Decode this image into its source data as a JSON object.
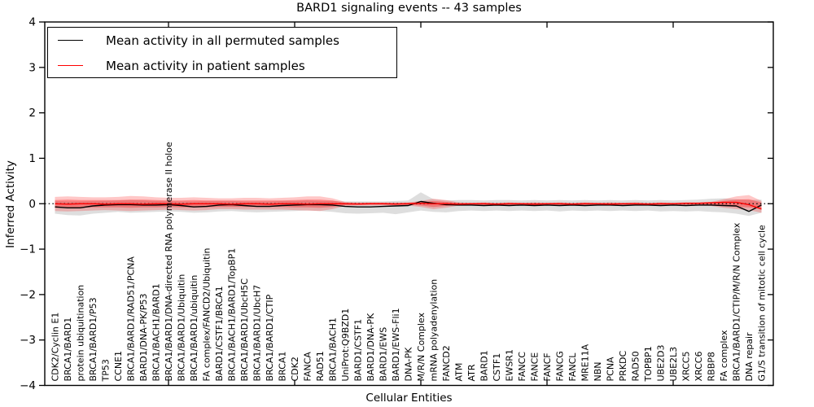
{
  "chart_data": {
    "type": "line",
    "title": "BARD1 signaling events -- 43 samples",
    "xlabel": "Cellular Entities",
    "ylabel": "Inferred Activity",
    "ylim": [
      -4,
      4
    ],
    "yticks": [
      4,
      3,
      2,
      1,
      0,
      -1,
      -2,
      -3,
      -4
    ],
    "x_major_tick_indices": [
      9,
      19,
      29,
      39,
      49
    ],
    "grid": false,
    "legend_position": "upper left",
    "zero_reference_line": {
      "style": "dotted",
      "color": "#000000",
      "y": 0
    },
    "categories": [
      "CDK2/Cyclin E1",
      "BRCA1/BARD1",
      "protein ubiquitination",
      "BRCA1/BARD1/P53",
      "TP53",
      "CCNE1",
      "BRCA1/BARD1/RAD51/PCNA",
      "BARD1/DNA-PK/P53",
      "BRCA1/BACH1/BARD1",
      "BRCA1/BARD1/DNA-directed RNA polymerase II holoe",
      "BRCA1/BARD1/Ubiquitin",
      "BRCA1/BARD1/ubiquitin",
      "FA complex/FANCD2/Ubiquitin",
      "BARD1/CSTF1/BRCA1",
      "BRCA1/BACH1/BARD1/TopBP1",
      "BRCA1/BARD1/UbcH5C",
      "BRCA1/BARD1/UbcH7",
      "BRCA1/BARD1/CTIP",
      "BRCA1",
      "CDK2",
      "FANCA",
      "RAD51",
      "BRCA1/BACH1",
      "UniProt:Q9BZD1",
      "BARD1/CSTF1",
      "BARD1/DNA-PK",
      "BARD1/EWS",
      "BARD1/EWS-Fli1",
      "DNA-PK",
      "M/R/N Complex",
      "mRNA polyadenylation",
      "FANCD2",
      "ATM",
      "ATR",
      "BARD1",
      "CSTF1",
      "EWSR1",
      "FANCC",
      "FANCE",
      "FANCF",
      "FANCG",
      "FANCL",
      "MRE11A",
      "NBN",
      "PCNA",
      "PRKDC",
      "RAD50",
      "TOPBP1",
      "UBE2D3",
      "UBE2L3",
      "XRCC5",
      "XRCC6",
      "RBBP8",
      "FA complex",
      "BRCA1/BARD1/CTIP/M/R/N Complex",
      "DNA repair",
      "G1/S transition of mitotic cell cycle"
    ],
    "series": [
      {
        "name": "Mean activity in all permuted samples",
        "color": "#000000",
        "values": [
          -0.07,
          -0.09,
          -0.09,
          -0.05,
          -0.03,
          -0.02,
          -0.02,
          -0.03,
          -0.03,
          -0.02,
          -0.04,
          -0.07,
          -0.06,
          -0.03,
          -0.02,
          -0.04,
          -0.06,
          -0.06,
          -0.04,
          -0.03,
          -0.02,
          -0.02,
          -0.03,
          -0.06,
          -0.07,
          -0.07,
          -0.06,
          -0.05,
          -0.04,
          0.05,
          0.01,
          -0.02,
          -0.03,
          -0.03,
          -0.04,
          -0.03,
          -0.04,
          -0.03,
          -0.04,
          -0.03,
          -0.04,
          -0.03,
          -0.04,
          -0.03,
          -0.03,
          -0.04,
          -0.03,
          -0.03,
          -0.04,
          -0.03,
          -0.04,
          -0.03,
          -0.03,
          -0.04,
          -0.05,
          -0.17,
          -0.03
        ]
      },
      {
        "name": "Mean activity in patient samples",
        "color": "#ff0000",
        "values": [
          0.0,
          -0.01,
          0.0,
          0.0,
          -0.01,
          0.0,
          0.0,
          -0.01,
          0.0,
          0.0,
          -0.01,
          0.0,
          0.0,
          0.0,
          -0.01,
          0.0,
          0.0,
          -0.01,
          0.0,
          0.0,
          -0.01,
          0.0,
          0.0,
          0.0,
          -0.01,
          0.0,
          0.0,
          -0.01,
          0.0,
          0.01,
          0.0,
          0.0,
          -0.01,
          0.0,
          0.0,
          -0.01,
          0.0,
          0.0,
          -0.01,
          0.0,
          0.0,
          -0.01,
          0.0,
          0.0,
          -0.01,
          0.0,
          0.0,
          -0.01,
          0.0,
          0.0,
          0.01,
          0.01,
          0.02,
          0.03,
          0.03,
          -0.02,
          -0.12
        ]
      }
    ],
    "bands": [
      {
        "name": "permuted-samples-range",
        "color": "#999999",
        "opacity": 0.32,
        "upper": [
          0.06,
          0.05,
          0.05,
          0.06,
          0.06,
          0.07,
          0.08,
          0.07,
          0.06,
          0.06,
          0.05,
          0.05,
          0.06,
          0.06,
          0.06,
          0.05,
          0.05,
          0.05,
          0.06,
          0.06,
          0.07,
          0.06,
          0.06,
          0.05,
          0.05,
          0.05,
          0.05,
          0.06,
          0.07,
          0.25,
          0.1,
          0.07,
          0.08,
          0.08,
          0.07,
          0.08,
          0.08,
          0.07,
          0.08,
          0.07,
          0.08,
          0.07,
          0.08,
          0.07,
          0.08,
          0.07,
          0.08,
          0.07,
          0.08,
          0.07,
          0.08,
          0.09,
          0.11,
          0.12,
          0.1,
          0.08,
          0.09
        ],
        "lower": [
          -0.22,
          -0.25,
          -0.26,
          -0.22,
          -0.2,
          -0.18,
          -0.2,
          -0.19,
          -0.18,
          -0.17,
          -0.18,
          -0.2,
          -0.19,
          -0.17,
          -0.16,
          -0.18,
          -0.19,
          -0.18,
          -0.17,
          -0.16,
          -0.15,
          -0.16,
          -0.18,
          -0.21,
          -0.22,
          -0.21,
          -0.2,
          -0.23,
          -0.19,
          -0.15,
          -0.18,
          -0.19,
          -0.16,
          -0.15,
          -0.16,
          -0.15,
          -0.16,
          -0.15,
          -0.16,
          -0.15,
          -0.17,
          -0.15,
          -0.16,
          -0.15,
          -0.16,
          -0.15,
          -0.16,
          -0.15,
          -0.17,
          -0.16,
          -0.17,
          -0.16,
          -0.18,
          -0.19,
          -0.22,
          -0.27,
          -0.2
        ]
      },
      {
        "name": "patient-samples-range",
        "color": "#ff0000",
        "opacity": 0.22,
        "upper": [
          0.15,
          0.16,
          0.15,
          0.14,
          0.14,
          0.15,
          0.17,
          0.16,
          0.14,
          0.13,
          0.13,
          0.14,
          0.13,
          0.12,
          0.12,
          0.13,
          0.13,
          0.12,
          0.13,
          0.14,
          0.16,
          0.16,
          0.12,
          0.04,
          0.03,
          0.03,
          0.03,
          0.03,
          0.03,
          0.06,
          0.11,
          0.08,
          0.03,
          0.02,
          0.03,
          0.02,
          0.03,
          0.02,
          0.03,
          0.02,
          0.03,
          0.02,
          0.03,
          0.02,
          0.03,
          0.02,
          0.03,
          0.02,
          0.03,
          0.02,
          0.03,
          0.03,
          0.04,
          0.1,
          0.16,
          0.19,
          0.06
        ],
        "lower": [
          -0.16,
          -0.17,
          -0.16,
          -0.15,
          -0.14,
          -0.15,
          -0.16,
          -0.15,
          -0.14,
          -0.13,
          -0.14,
          -0.15,
          -0.14,
          -0.12,
          -0.12,
          -0.13,
          -0.13,
          -0.13,
          -0.13,
          -0.14,
          -0.15,
          -0.16,
          -0.12,
          -0.05,
          -0.04,
          -0.04,
          -0.04,
          -0.04,
          -0.04,
          -0.07,
          -0.12,
          -0.09,
          -0.04,
          -0.03,
          -0.04,
          -0.03,
          -0.04,
          -0.03,
          -0.04,
          -0.03,
          -0.04,
          -0.03,
          -0.04,
          -0.03,
          -0.04,
          -0.03,
          -0.04,
          -0.03,
          -0.04,
          -0.03,
          -0.04,
          -0.04,
          -0.05,
          -0.09,
          -0.12,
          -0.14,
          -0.2
        ]
      },
      {
        "name": "patient-samples-inner-range",
        "color": "#ff0000",
        "opacity": 0.3,
        "upper": [
          0.08,
          0.09,
          0.08,
          0.08,
          0.08,
          0.08,
          0.09,
          0.09,
          0.08,
          0.07,
          0.07,
          0.08,
          0.07,
          0.07,
          0.07,
          0.07,
          0.07,
          0.07,
          0.07,
          0.08,
          0.09,
          0.09,
          0.07,
          0.02,
          0.02,
          0.02,
          0.02,
          0.02,
          0.02,
          0.03,
          0.06,
          0.04,
          0.02,
          0.01,
          0.02,
          0.01,
          0.02,
          0.01,
          0.02,
          0.01,
          0.02,
          0.01,
          0.02,
          0.01,
          0.02,
          0.01,
          0.02,
          0.01,
          0.02,
          0.01,
          0.02,
          0.02,
          0.02,
          0.06,
          0.09,
          0.1,
          0.03
        ],
        "lower": [
          -0.09,
          -0.09,
          -0.09,
          -0.08,
          -0.08,
          -0.08,
          -0.09,
          -0.08,
          -0.08,
          -0.07,
          -0.08,
          -0.08,
          -0.08,
          -0.07,
          -0.07,
          -0.07,
          -0.07,
          -0.07,
          -0.07,
          -0.08,
          -0.08,
          -0.09,
          -0.07,
          -0.03,
          -0.02,
          -0.02,
          -0.02,
          -0.02,
          -0.02,
          -0.04,
          -0.07,
          -0.05,
          -0.02,
          -0.02,
          -0.02,
          -0.02,
          -0.02,
          -0.02,
          -0.02,
          -0.02,
          -0.02,
          -0.02,
          -0.02,
          -0.02,
          -0.02,
          -0.02,
          -0.02,
          -0.02,
          -0.02,
          -0.02,
          -0.02,
          -0.02,
          -0.03,
          -0.05,
          -0.07,
          -0.08,
          -0.11
        ]
      }
    ]
  }
}
